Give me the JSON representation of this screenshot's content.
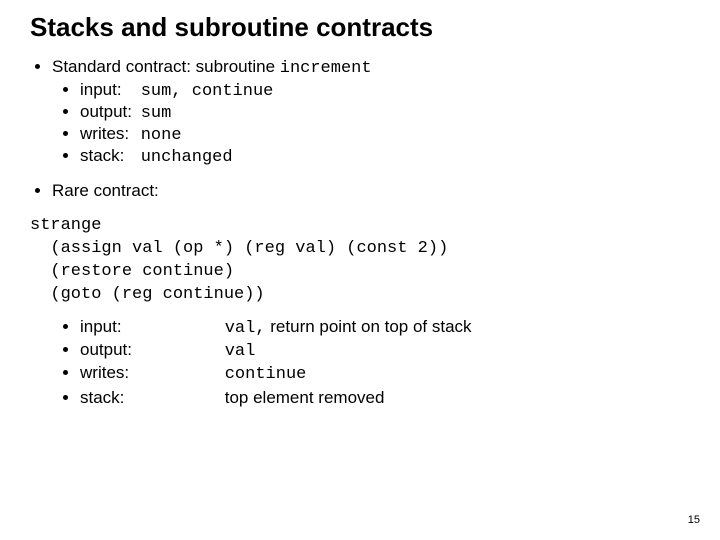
{
  "title": "Stacks and subroutine contracts",
  "b1": {
    "prefix": "Standard contract: subroutine ",
    "code": "increment"
  },
  "s1": {
    "input_label": "input:",
    "input_code": "sum, continue",
    "output_label": "output:",
    "output_code": "sum",
    "writes_label": "writes:",
    "writes_code": "none",
    "stack_label": "stack:",
    "stack_code": "unchanged"
  },
  "b2": "Rare contract:",
  "code": {
    "l1": "strange",
    "l2": "  (assign val (op *) (reg val) (const 2))",
    "l3": "  (restore continue)",
    "l4": "  (goto (reg continue))"
  },
  "s2": {
    "input_label": "input:",
    "input_code": "val,",
    "input_tail": " return point on top of stack",
    "output_label": "output:",
    "output_code": "val",
    "writes_label": "writes:",
    "writes_code": "continue",
    "stack_label": "stack:",
    "stack_val": "top element removed"
  },
  "page": "15"
}
